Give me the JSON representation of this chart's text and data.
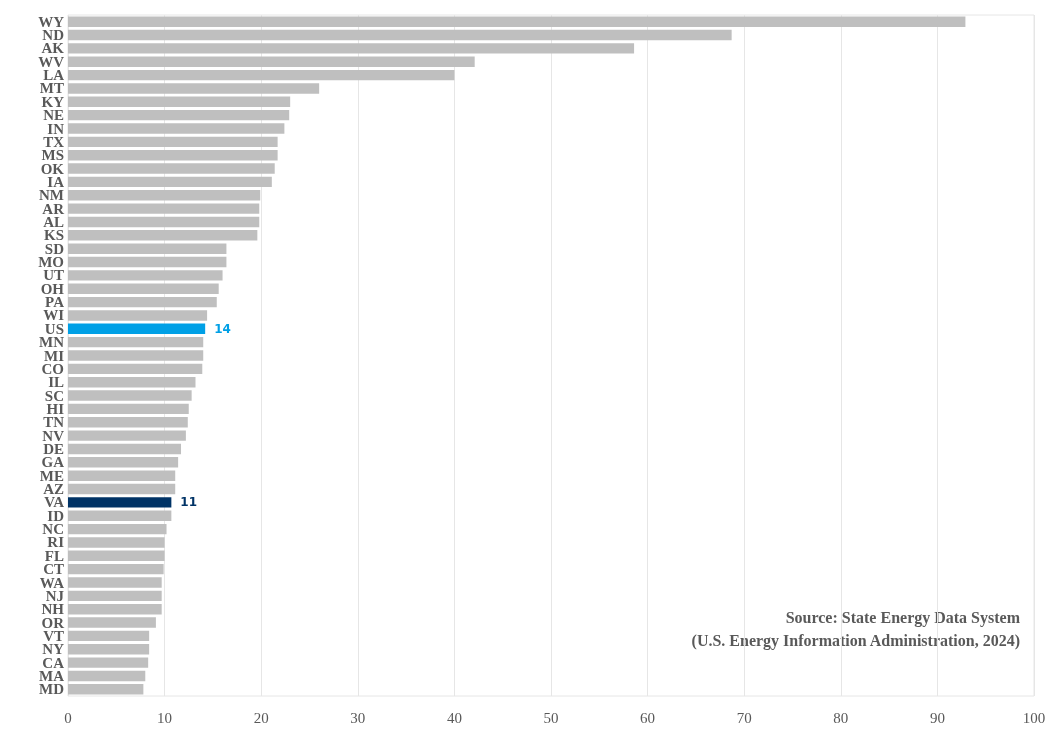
{
  "chart_data": {
    "type": "bar",
    "orientation": "horizontal",
    "categories": [
      "WY",
      "ND",
      "AK",
      "WV",
      "LA",
      "MT",
      "KY",
      "NE",
      "IN",
      "TX",
      "MS",
      "OK",
      "IA",
      "NM",
      "AR",
      "AL",
      "KS",
      "SD",
      "MO",
      "UT",
      "OH",
      "PA",
      "WI",
      "US",
      "MN",
      "MI",
      "CO",
      "IL",
      "SC",
      "HI",
      "TN",
      "NV",
      "DE",
      "GA",
      "ME",
      "AZ",
      "VA",
      "ID",
      "NC",
      "RI",
      "FL",
      "CT",
      "WA",
      "NJ",
      "NH",
      "OR",
      "VT",
      "NY",
      "CA",
      "MA",
      "MD"
    ],
    "values": [
      92.9,
      68.7,
      58.6,
      42.1,
      40.0,
      26.0,
      23.0,
      22.9,
      22.4,
      21.7,
      21.7,
      21.4,
      21.1,
      19.9,
      19.8,
      19.8,
      19.6,
      16.4,
      16.4,
      16.0,
      15.6,
      15.4,
      14.4,
      14.2,
      14.0,
      14.0,
      13.9,
      13.2,
      12.8,
      12.5,
      12.4,
      12.2,
      11.7,
      11.4,
      11.1,
      11.1,
      10.7,
      10.7,
      10.2,
      10.0,
      10.0,
      9.9,
      9.7,
      9.7,
      9.7,
      9.1,
      8.4,
      8.4,
      8.3,
      8.0,
      7.8
    ],
    "colors": [
      "#bfbfbf",
      "#bfbfbf",
      "#bfbfbf",
      "#bfbfbf",
      "#bfbfbf",
      "#bfbfbf",
      "#bfbfbf",
      "#bfbfbf",
      "#bfbfbf",
      "#bfbfbf",
      "#bfbfbf",
      "#bfbfbf",
      "#bfbfbf",
      "#bfbfbf",
      "#bfbfbf",
      "#bfbfbf",
      "#bfbfbf",
      "#bfbfbf",
      "#bfbfbf",
      "#bfbfbf",
      "#bfbfbf",
      "#bfbfbf",
      "#bfbfbf",
      "#00a0e6",
      "#bfbfbf",
      "#bfbfbf",
      "#bfbfbf",
      "#bfbfbf",
      "#bfbfbf",
      "#bfbfbf",
      "#bfbfbf",
      "#bfbfbf",
      "#bfbfbf",
      "#bfbfbf",
      "#bfbfbf",
      "#bfbfbf",
      "#003366",
      "#bfbfbf",
      "#bfbfbf",
      "#bfbfbf",
      "#bfbfbf",
      "#bfbfbf",
      "#bfbfbf",
      "#bfbfbf",
      "#bfbfbf",
      "#bfbfbf",
      "#bfbfbf",
      "#bfbfbf",
      "#bfbfbf",
      "#bfbfbf",
      "#bfbfbf"
    ],
    "value_labels": [
      null,
      null,
      null,
      null,
      null,
      null,
      null,
      null,
      null,
      null,
      null,
      null,
      null,
      null,
      null,
      null,
      null,
      null,
      null,
      null,
      null,
      null,
      null,
      "14",
      null,
      null,
      null,
      null,
      null,
      null,
      null,
      null,
      null,
      null,
      null,
      null,
      "11",
      null,
      null,
      null,
      null,
      null,
      null,
      null,
      null,
      null,
      null,
      null,
      null,
      null,
      null
    ],
    "xlim": [
      0,
      100
    ],
    "xticks": [
      0,
      10,
      20,
      30,
      40,
      50,
      60,
      70,
      80,
      90,
      100
    ],
    "grid": "x",
    "annotations": [
      "Source: State Energy Data System",
      "(U.S. Energy Information Administration, 2024)"
    ]
  }
}
